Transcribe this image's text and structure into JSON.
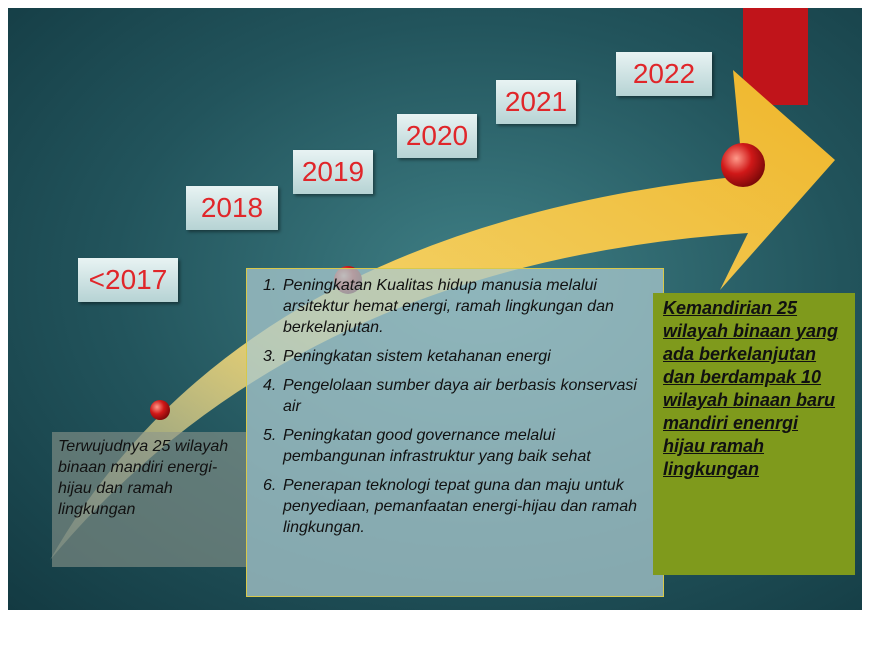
{
  "years": [
    "<2017",
    "2018",
    "2019",
    "2020",
    "2021",
    "2022"
  ],
  "left_box": "Terwujudnya 25 wilayah binaan mandiri energi-hijau dan ramah lingkungan",
  "list": [
    {
      "number": "1.",
      "text": "Peningkatan Kualitas hidup manusia melalui arsitektur hemat energi, ramah lingkungan dan berkelanjutan."
    },
    {
      "number": "3.",
      "text": "Peningkatan sistem ketahanan energi"
    },
    {
      "number": "4.",
      "text": "Pengelolaan sumber daya air berbasis konservasi air"
    },
    {
      "number": "5.",
      "text": "Peningkatan good governance melalui pembangunan infrastruktur yang baik sehat"
    },
    {
      "number": "6.",
      "text": "Penerapan teknologi tepat guna dan maju untuk penyediaan, pemanfaatan energi-hijau dan ramah lingkungan."
    }
  ],
  "right_box": "Kemandirian 25 wilayah binaan yang ada berkelanjutan dan berdampak 10 wilayah binaan baru mandiri enenrgi hijau ramah lingkungan"
}
